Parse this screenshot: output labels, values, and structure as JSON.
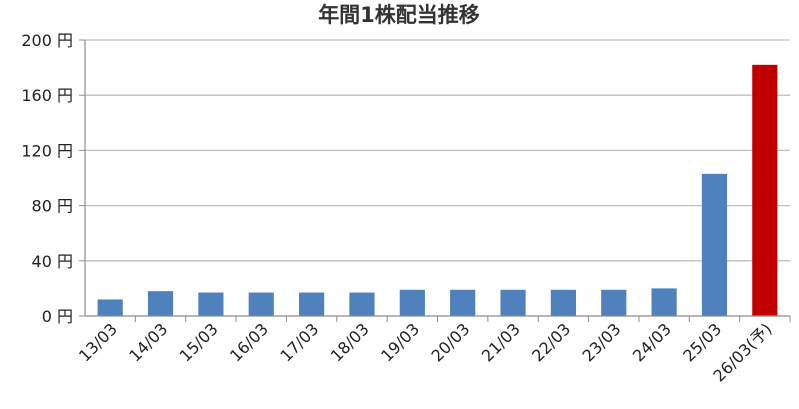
{
  "chart_data": {
    "type": "bar",
    "title": "年間1株配当推移",
    "xlabel": "",
    "ylabel": "",
    "categories": [
      "13/03",
      "14/03",
      "15/03",
      "16/03",
      "17/03",
      "18/03",
      "19/03",
      "20/03",
      "21/03",
      "22/03",
      "23/03",
      "24/03",
      "25/03",
      "26/03(予)"
    ],
    "values": [
      12,
      18,
      17,
      17,
      17,
      17,
      19,
      19,
      19,
      19,
      19,
      20,
      103,
      182
    ],
    "ylim": [
      0,
      200
    ],
    "yticks": [
      {
        "value": 0,
        "label": "0 円"
      },
      {
        "value": 40,
        "label": "40 円"
      },
      {
        "value": 80,
        "label": "80 円"
      },
      {
        "value": 120,
        "label": "120 円"
      },
      {
        "value": 160,
        "label": "160 円"
      },
      {
        "value": 200,
        "label": "200 円"
      }
    ],
    "grid": true,
    "colors": {
      "actual": "#4f81bd",
      "forecast": "#c00000",
      "grid": "#bfbfbf",
      "axis": "#8c8c8c"
    },
    "forecast_index": 13
  }
}
